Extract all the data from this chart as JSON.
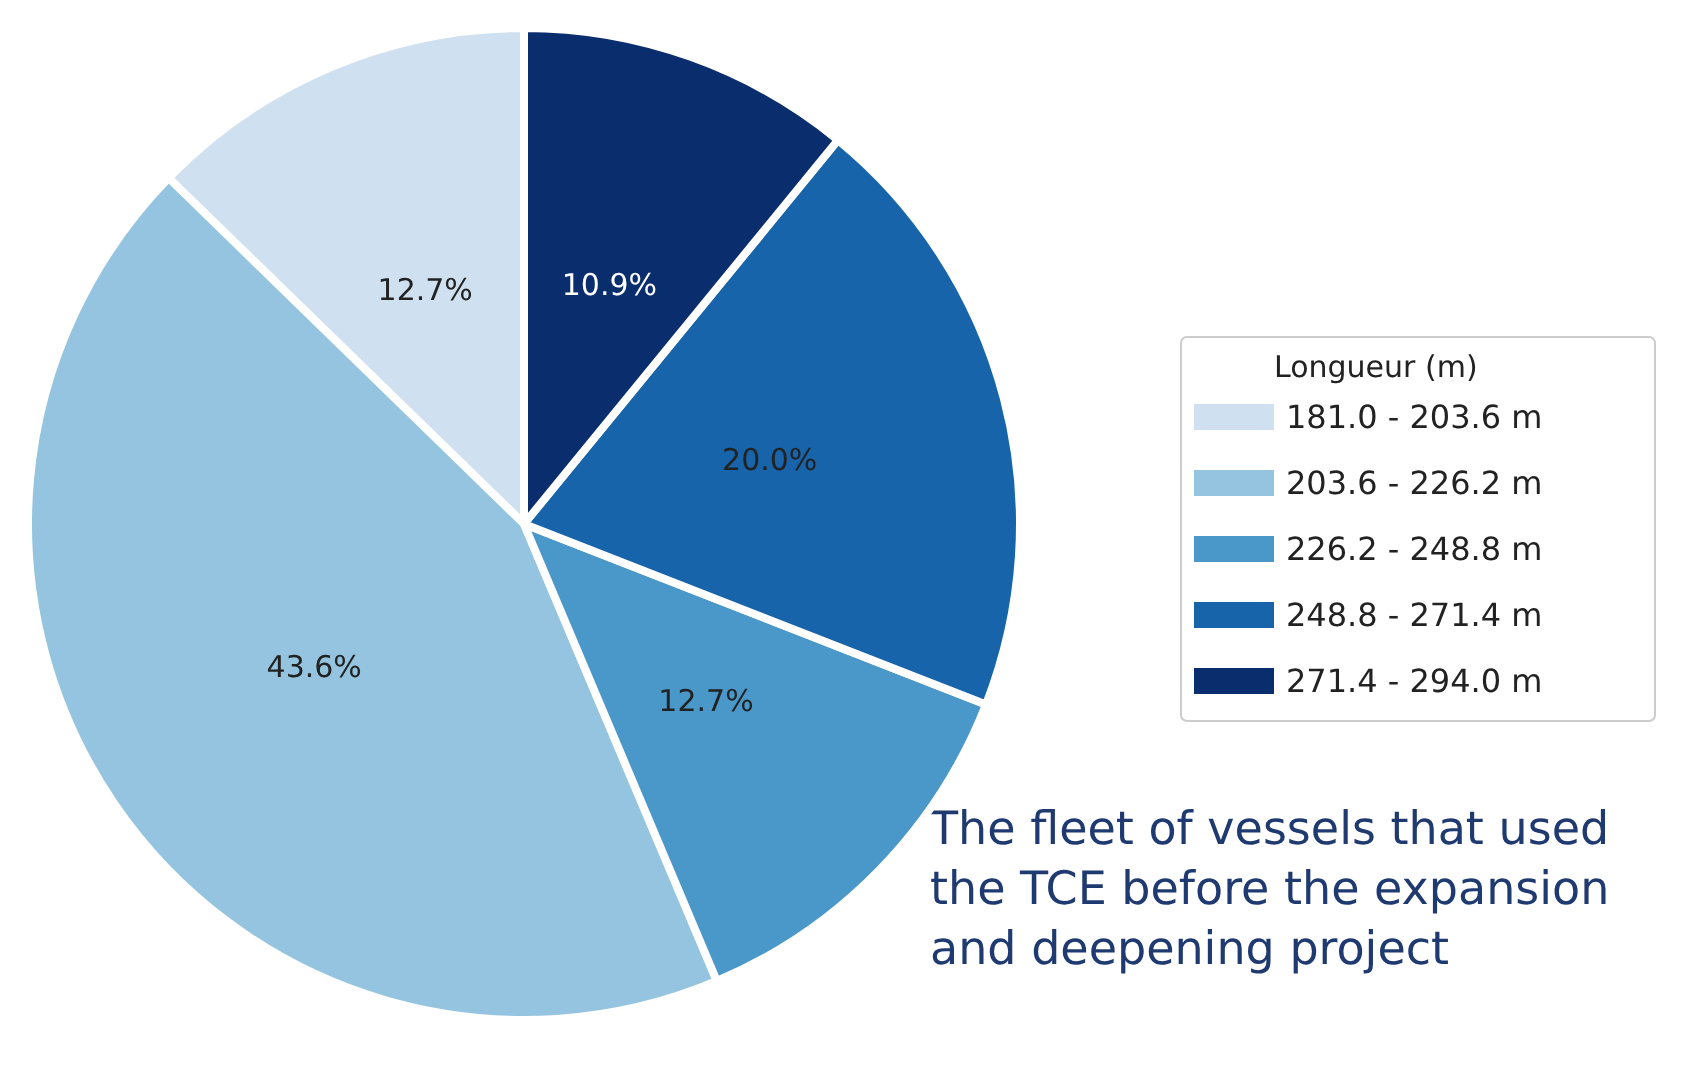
{
  "chart_data": {
    "type": "pie",
    "categories": [
      "181.0 - 203.6 m",
      "203.6 - 226.2 m",
      "226.2 - 248.8 m",
      "248.8 - 271.4 m",
      "271.4 - 294.0 m"
    ],
    "values": [
      12.7,
      43.6,
      12.7,
      20.0,
      10.9
    ],
    "value_labels": [
      "12.7%",
      "43.6%",
      "12.7%",
      "20.0%",
      "10.9%"
    ],
    "colors": [
      "#cfe0f1",
      "#94c4df",
      "#4a98c9",
      "#1764ab",
      "#0a2d6e"
    ],
    "legend": "right",
    "legend_title": "Longueur (m)",
    "annotations": [
      "The fleet of vessels that used the TCE before the expansion and deepening project"
    ]
  }
}
